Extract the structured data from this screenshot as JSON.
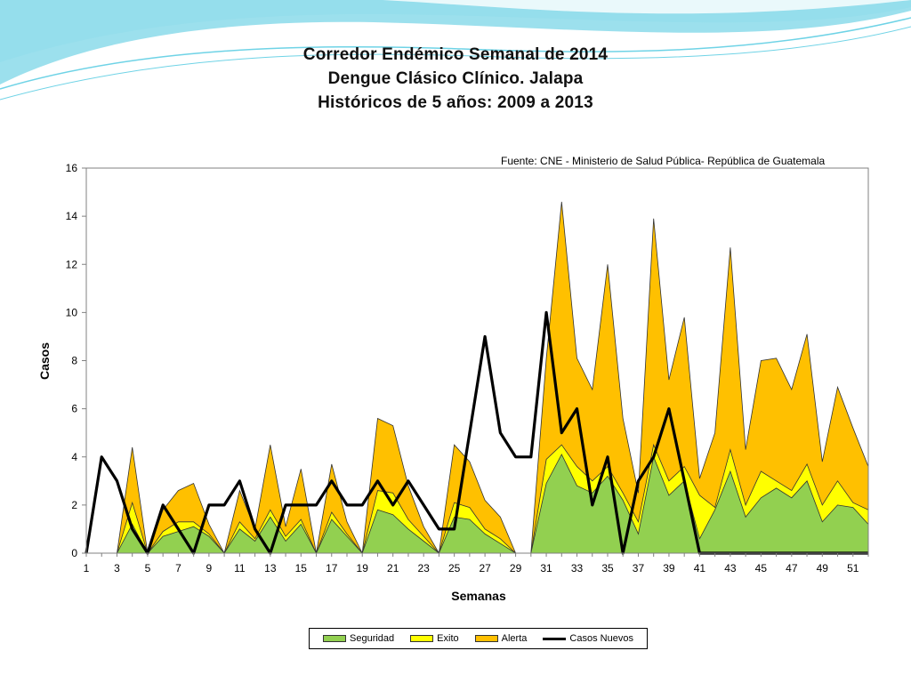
{
  "slide": {
    "title_lines": [
      "Corredor Endémico Semanal de 2014",
      "Dengue Clásico Clínico. Jalapa",
      "Históricos de 5 años: 2009 a 2013"
    ],
    "source": "Fuente: CNE - Ministerio de Salud Pública- República de Guatemala"
  },
  "colors": {
    "seguridad": "#92D050",
    "exito": "#FFFF00",
    "alerta": "#FFC000",
    "casos_nuevos": "#000000",
    "swoosh": "#4BC6DE"
  },
  "chart_data": {
    "type": "area",
    "xlabel": "Semanas",
    "ylabel": "Casos",
    "xlim": [
      1,
      52
    ],
    "ylim": [
      0,
      16
    ],
    "yticks": [
      0,
      2,
      4,
      6,
      8,
      10,
      12,
      14,
      16
    ],
    "xticks": [
      1,
      3,
      5,
      7,
      9,
      11,
      13,
      15,
      17,
      19,
      21,
      23,
      25,
      27,
      29,
      31,
      33,
      35,
      37,
      39,
      41,
      43,
      45,
      47,
      49,
      51
    ],
    "grid": false,
    "legend_position": "bottom",
    "x": [
      1,
      2,
      3,
      4,
      5,
      6,
      7,
      8,
      9,
      10,
      11,
      12,
      13,
      14,
      15,
      16,
      17,
      18,
      19,
      20,
      21,
      22,
      23,
      24,
      25,
      26,
      27,
      28,
      29,
      30,
      31,
      32,
      33,
      34,
      35,
      36,
      37,
      38,
      39,
      40,
      41,
      42,
      43,
      44,
      45,
      46,
      47,
      48,
      49,
      50,
      51,
      52
    ],
    "series": [
      {
        "name": "Seguridad",
        "type": "area",
        "values": [
          0,
          0,
          0,
          1.2,
          0,
          0.7,
          0.9,
          1.1,
          0.7,
          0,
          1,
          0.5,
          1.5,
          0.5,
          1.2,
          0,
          1.4,
          0.7,
          0,
          1.8,
          1.6,
          1,
          0.5,
          0,
          1.5,
          1.4,
          0.8,
          0.4,
          0,
          0,
          2.9,
          4.1,
          2.8,
          2.5,
          3.2,
          2.2,
          0.8,
          4,
          2.4,
          3,
          0.6,
          1.8,
          3.4,
          1.5,
          2.3,
          2.7,
          2.3,
          3,
          1.3,
          2,
          1.9,
          1.2
        ]
      },
      {
        "name": "Exito",
        "type": "area",
        "values": [
          0,
          0,
          0,
          2.1,
          0,
          0.9,
          1.3,
          1.3,
          0.8,
          0,
          1.3,
          0.6,
          1.8,
          0.7,
          1.4,
          0,
          1.7,
          0.8,
          0,
          2.6,
          2.5,
          1.4,
          0.7,
          0,
          2.1,
          1.9,
          1,
          0.6,
          0,
          0,
          3.9,
          4.5,
          3.6,
          3,
          3.6,
          2.5,
          1.3,
          4.5,
          3,
          3.6,
          2.4,
          1.9,
          4.3,
          2,
          3.4,
          3,
          2.6,
          3.7,
          2,
          3,
          2.1,
          1.8
        ]
      },
      {
        "name": "Alerta",
        "type": "area",
        "values": [
          0,
          0,
          0,
          4.4,
          0,
          1.8,
          2.6,
          2.9,
          1.2,
          0,
          2.6,
          1,
          4.5,
          1.1,
          3.5,
          0,
          3.7,
          1.3,
          0,
          5.6,
          5.3,
          2.8,
          1.1,
          0,
          4.5,
          3.8,
          2.2,
          1.5,
          0,
          0,
          8.1,
          14.6,
          8.1,
          6.8,
          12,
          5.6,
          2.5,
          13.9,
          7.2,
          9.8,
          3.1,
          5,
          12.7,
          4.3,
          8,
          8.1,
          6.8,
          9.1,
          3.8,
          6.9,
          5.2,
          3.6
        ]
      },
      {
        "name": "Casos Nuevos",
        "type": "line",
        "values": [
          0,
          4,
          3,
          1,
          0,
          2,
          1,
          0,
          2,
          2,
          3,
          1,
          0,
          2,
          2,
          2,
          3,
          2,
          2,
          3,
          2,
          3,
          2,
          1,
          1,
          5,
          9,
          5,
          4,
          4,
          10,
          5,
          6,
          2,
          4,
          0,
          3,
          4,
          6,
          3,
          0,
          0,
          0,
          0,
          0,
          0,
          0,
          0,
          0,
          0,
          0,
          0
        ]
      }
    ]
  }
}
